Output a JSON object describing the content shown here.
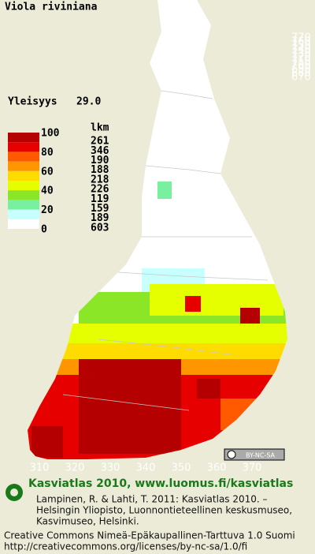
{
  "title": "Viola riviniana",
  "frequency": {
    "label": "Yleisyys",
    "value": "29.0"
  },
  "legend": {
    "count_header": "lkm",
    "scale_labels": [
      100,
      80,
      60,
      40,
      20,
      0
    ],
    "classes": [
      {
        "color": "#b40000",
        "count": 261
      },
      {
        "color": "#e60000",
        "count": 346
      },
      {
        "color": "#ff5a00",
        "count": 190
      },
      {
        "color": "#ff9600",
        "count": 188
      },
      {
        "color": "#ffdc00",
        "count": 218
      },
      {
        "color": "#e6ff00",
        "count": 226
      },
      {
        "color": "#8ce628",
        "count": 119
      },
      {
        "color": "#78f0a0",
        "count": 159
      },
      {
        "color": "#c8ffff",
        "count": 189
      },
      {
        "color": "#ffffff",
        "count": 603
      }
    ]
  },
  "grid": {
    "northing": [
      770,
      760,
      750,
      740,
      730,
      720,
      710,
      700,
      690,
      680,
      670
    ],
    "easting": [
      310,
      320,
      330,
      340,
      350,
      360,
      370
    ]
  },
  "license_badge": "BY-NC-SA",
  "footer": {
    "heading": "Kasviatlas 2010, www.luomus.fi/kasviatlas",
    "citation": [
      "Lampinen, R. & Lahti, T. 2011: Kasviatlas 2010. –",
      "Helsingin Yliopisto, Luonnontieteellinen keskusmuseo,",
      "Kasvimuseo, Helsinki."
    ],
    "license": [
      "Creative Commons Nimeä-Epäkaupallinen-Tarttuva 1.0 Suomi",
      "http://creativecommons.org/licenses/by-nc-sa/1.0/fi"
    ]
  }
}
